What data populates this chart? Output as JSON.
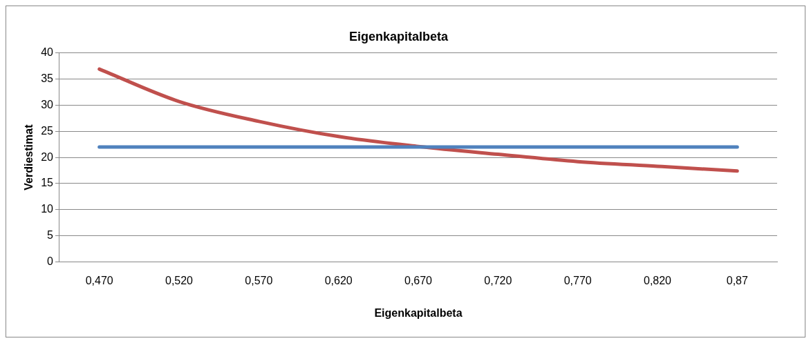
{
  "chart_data": {
    "type": "line",
    "title": "Eigenkapitalbeta",
    "xlabel": "Eigenkapitalbeta",
    "ylabel": "Verdiestimat",
    "categories": [
      "0,470",
      "0,520",
      "0,570",
      "0,620",
      "0,670",
      "0,720",
      "0,770",
      "0,820",
      "0,87"
    ],
    "series": [
      {
        "color": "#4f81bd",
        "values": [
          22,
          22,
          22,
          22,
          22,
          22,
          22,
          22,
          22
        ]
      },
      {
        "color": "#c0504d",
        "values": [
          36.9,
          30.7,
          26.9,
          24.0,
          22.1,
          20.6,
          19.2,
          18.3,
          17.4
        ]
      }
    ],
    "ylim": [
      0,
      40
    ],
    "yticks": [
      0,
      5,
      10,
      15,
      20,
      25,
      30,
      35,
      40
    ],
    "grid": "y",
    "legend": false,
    "marker": "none",
    "line_style": "solid"
  }
}
